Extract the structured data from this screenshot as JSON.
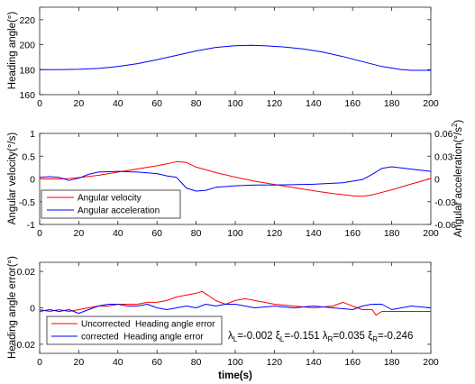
{
  "chart_data": [
    {
      "type": "line",
      "title": "",
      "xlabel": "",
      "ylabel": "Heading angle(°)",
      "xlim": [
        0,
        200
      ],
      "ylim": [
        160,
        230
      ],
      "xticks": [
        "0",
        "20",
        "40",
        "60",
        "80",
        "100",
        "120",
        "140",
        "160",
        "180",
        "200"
      ],
      "yticks": [
        "160",
        "180",
        "200",
        "220"
      ],
      "grid": false,
      "series": [
        {
          "color": "#0000ff",
          "x": [
            0,
            10,
            20,
            30,
            40,
            50,
            60,
            70,
            80,
            90,
            100,
            108,
            115,
            125,
            135,
            145,
            155,
            165,
            175,
            185,
            190,
            200
          ],
          "y": [
            180,
            180,
            180.3,
            181,
            182.5,
            184.8,
            188,
            191.5,
            195,
            197.8,
            199.2,
            199.5,
            199.2,
            198.2,
            196.5,
            194,
            190.5,
            186.5,
            182.5,
            180,
            179.5,
            179.5
          ]
        }
      ]
    },
    {
      "type": "line",
      "title": "",
      "xlabel": "",
      "ylabel": "Angular velocity(°/s)",
      "y2label": "Angular acceleration(°/s²)",
      "xlim": [
        0,
        200
      ],
      "ylim": [
        -1,
        1
      ],
      "y2lim": [
        -0.06,
        0.06
      ],
      "xticks": [
        "0",
        "20",
        "40",
        "60",
        "80",
        "100",
        "120",
        "140",
        "160",
        "180",
        "200"
      ],
      "yticks": [
        "-1",
        "-0.5",
        "0",
        "0.5",
        "1"
      ],
      "y2ticks": [
        "-0.06",
        "-0.03",
        "0",
        "0.03",
        "0.06"
      ],
      "grid": false,
      "legend_position": "lower-left",
      "series": [
        {
          "name": "Angular velocity",
          "axis": "left",
          "color": "#ff0000",
          "x": [
            0,
            10,
            15,
            20,
            30,
            40,
            50,
            60,
            65,
            70,
            75,
            80,
            90,
            100,
            110,
            120,
            130,
            140,
            150,
            160,
            165,
            170,
            180,
            190,
            200
          ],
          "y": [
            0,
            0,
            0.01,
            0.03,
            0.08,
            0.15,
            0.22,
            0.29,
            0.33,
            0.38,
            0.36,
            0.26,
            0.14,
            0.04,
            -0.05,
            -0.12,
            -0.19,
            -0.26,
            -0.32,
            -0.37,
            -0.38,
            -0.35,
            -0.24,
            -0.11,
            0.01
          ]
        },
        {
          "name": "Angular acceleration",
          "axis": "right",
          "color": "#0000ff",
          "x": [
            0,
            5,
            10,
            15,
            20,
            25,
            30,
            40,
            50,
            60,
            65,
            70,
            75,
            80,
            85,
            90,
            100,
            110,
            120,
            140,
            155,
            165,
            170,
            175,
            180,
            190,
            200
          ],
          "y": [
            0.002,
            0.003,
            0.002,
            -0.002,
            0.001,
            0.006,
            0.009,
            0.01,
            0.009,
            0.007,
            0.004,
            0.002,
            -0.012,
            -0.016,
            -0.015,
            -0.011,
            -0.009,
            -0.008,
            -0.008,
            -0.007,
            -0.005,
            -0.001,
            0.006,
            0.014,
            0.016,
            0.013,
            0.01
          ]
        }
      ]
    },
    {
      "type": "line",
      "title": "",
      "xlabel": "time(s)",
      "ylabel": "Heading angle error(°)",
      "xlim": [
        0,
        200
      ],
      "ylim": [
        -0.025,
        0.025
      ],
      "xticks": [
        "0",
        "20",
        "40",
        "60",
        "80",
        "100",
        "120",
        "140",
        "160",
        "180",
        "200"
      ],
      "yticks": [
        "-0.02",
        "0",
        "0.02"
      ],
      "grid": false,
      "legend_position": "lower-left",
      "annotation": "λL=-0.002 ξL=-0.151 λR=0.035 ξR=-0.246",
      "series": [
        {
          "name": "Uncorrected  Heading angle error",
          "color": "#ff0000",
          "x": [
            0,
            5,
            10,
            15,
            20,
            25,
            30,
            35,
            40,
            45,
            50,
            55,
            60,
            65,
            70,
            75,
            80,
            83,
            86,
            90,
            95,
            100,
            105,
            110,
            115,
            120,
            130,
            140,
            150,
            155,
            160,
            165,
            170,
            172,
            175,
            180,
            190,
            200
          ],
          "y": [
            -0.001,
            -0.002,
            -0.001,
            -0.002,
            -0.001,
            0,
            0.001,
            0.001,
            0.002,
            0.002,
            0.002,
            0.003,
            0.003,
            0.004,
            0.006,
            0.007,
            0.008,
            0.009,
            0.007,
            0.004,
            0.002,
            0.004,
            0.005,
            0.004,
            0.003,
            0.002,
            0.001,
            0,
            0.001,
            0.003,
            0.001,
            -0.001,
            -0.001,
            -0.004,
            -0.002,
            -0.002,
            -0.002,
            -0.002
          ]
        },
        {
          "name": "corrected  Heading angle error",
          "color": "#0000ff",
          "x": [
            0,
            5,
            10,
            15,
            20,
            25,
            30,
            35,
            40,
            45,
            50,
            55,
            60,
            65,
            70,
            75,
            80,
            85,
            90,
            95,
            100,
            105,
            110,
            120,
            130,
            140,
            150,
            160,
            165,
            170,
            175,
            180,
            190,
            200
          ],
          "y": [
            -0.002,
            -0.001,
            -0.002,
            -0.001,
            -0.003,
            -0.001,
            0.001,
            0.002,
            0.002,
            0.001,
            0.001,
            0.002,
            0,
            -0.001,
            0,
            0.001,
            0,
            0.002,
            0.001,
            0.002,
            0.002,
            0.001,
            0,
            0.001,
            0,
            0.001,
            0,
            -0.001,
            0.001,
            0.002,
            0.002,
            -0.001,
            0.001,
            0
          ]
        }
      ]
    }
  ]
}
